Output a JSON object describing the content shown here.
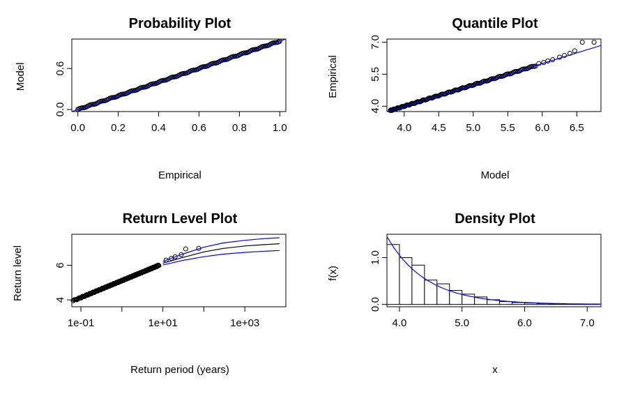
{
  "chart_data": [
    {
      "type": "scatter",
      "title": "Probability Plot",
      "xlabel": "Empirical",
      "ylabel": "Model",
      "xlim": [
        -0.03,
        1.03
      ],
      "ylim": [
        -0.03,
        1.03
      ],
      "xticks": [
        "0.0",
        "0.2",
        "0.4",
        "0.6",
        "0.8",
        "1.0"
      ],
      "yticks": [
        "0.0",
        "0.6"
      ],
      "xtick_values": [
        0,
        0.2,
        0.4,
        0.6,
        0.8,
        1.0
      ],
      "ytick_values": [
        0,
        0.6
      ],
      "reference_line": {
        "color": "#0000ff",
        "from": [
          0,
          0
        ],
        "to": [
          1,
          1
        ]
      },
      "points": {
        "n": 180,
        "range": [
          0,
          1
        ]
      }
    },
    {
      "type": "scatter",
      "title": "Quantile Plot",
      "xlabel": "Model",
      "ylabel": "Empirical",
      "xlim": [
        3.75,
        6.85
      ],
      "ylim": [
        3.75,
        7.15
      ],
      "xticks": [
        "4.0",
        "4.5",
        "5.0",
        "5.5",
        "6.0",
        "6.5"
      ],
      "yticks": [
        "4.0",
        "5.5",
        "7.0"
      ],
      "xtick_values": [
        4.0,
        4.5,
        5.0,
        5.5,
        6.0,
        6.5
      ],
      "ytick_values": [
        4.0,
        5.5,
        7.0
      ],
      "reference_line": {
        "color": "#0000ff",
        "from": [
          3.75,
          3.75
        ],
        "to": [
          6.85,
          6.85
        ]
      },
      "points": {
        "dense_range": [
          3.8,
          5.9
        ],
        "tail": [
          [
            5.95,
            6.0
          ],
          [
            6.02,
            6.05
          ],
          [
            6.08,
            6.12
          ],
          [
            6.15,
            6.18
          ],
          [
            6.25,
            6.3
          ],
          [
            6.32,
            6.38
          ],
          [
            6.4,
            6.48
          ],
          [
            6.47,
            6.6
          ],
          [
            6.58,
            7.0
          ],
          [
            6.75,
            7.0
          ]
        ]
      }
    },
    {
      "type": "line",
      "title": "Return Level Plot",
      "xlabel": "Return period (years)",
      "ylabel": "Return level",
      "xscale": "log",
      "xlim": [
        0.06,
        10000
      ],
      "ylim": [
        3.6,
        7.8
      ],
      "xticks": [
        "1e-01",
        "1e+01",
        "1e+03"
      ],
      "yticks": [
        "4",
        "6"
      ],
      "xtick_values": [
        0.1,
        1,
        10,
        100,
        1000
      ],
      "xtick_labeled": [
        0.1,
        10,
        1000
      ],
      "ytick_values": [
        4,
        6
      ],
      "series": [
        {
          "color": "#000000",
          "x": [
            10,
            30,
            100,
            300,
            1000,
            3000,
            7000
          ],
          "y": [
            6.12,
            6.45,
            6.78,
            6.98,
            7.12,
            7.2,
            7.25
          ]
        },
        {
          "color": "#0000ff",
          "x": [
            10,
            30,
            100,
            300,
            1000,
            3000,
            7000
          ],
          "y": [
            6.22,
            6.65,
            7.05,
            7.3,
            7.45,
            7.55,
            7.6
          ]
        },
        {
          "color": "#0000ff",
          "x": [
            10,
            30,
            100,
            300,
            1000,
            3000,
            7000
          ],
          "y": [
            6.02,
            6.28,
            6.5,
            6.65,
            6.75,
            6.82,
            6.86
          ]
        }
      ],
      "points": {
        "dense_x_range": [
          0.065,
          8
        ],
        "dense_y_range": [
          3.95,
          6.0
        ],
        "tail": [
          [
            12,
            6.3
          ],
          [
            16,
            6.4
          ],
          [
            20,
            6.5
          ],
          [
            28,
            6.62
          ],
          [
            36,
            6.95
          ],
          [
            75,
            6.98
          ]
        ]
      }
    },
    {
      "type": "bar",
      "title": "Density Plot",
      "xlabel": "x",
      "ylabel": "f(x)",
      "xlim": [
        3.8,
        7.22
      ],
      "ylim": [
        -0.05,
        1.5
      ],
      "xticks": [
        "4.0",
        "5.0",
        "6.0",
        "7.0"
      ],
      "yticks": [
        "0.0",
        "1.0"
      ],
      "xtick_values": [
        4.0,
        5.0,
        6.0,
        7.0
      ],
      "ytick_values": [
        0,
        1.0
      ],
      "bin_edges": [
        3.8,
        4.0,
        4.2,
        4.4,
        4.6,
        4.8,
        5.0,
        5.2,
        5.4,
        5.6,
        5.8,
        6.0,
        6.2,
        6.4,
        6.6,
        6.8,
        7.0,
        7.2
      ],
      "values": [
        1.28,
        1.0,
        0.84,
        0.52,
        0.44,
        0.3,
        0.22,
        0.16,
        0.1,
        0.06,
        0.04,
        0.03,
        0.02,
        0.015,
        0.01,
        0.01,
        0.01
      ],
      "density_curve": {
        "color": "#0000ff",
        "x0": 3.8,
        "rate": 1.6,
        "scale": 1.45
      }
    }
  ]
}
